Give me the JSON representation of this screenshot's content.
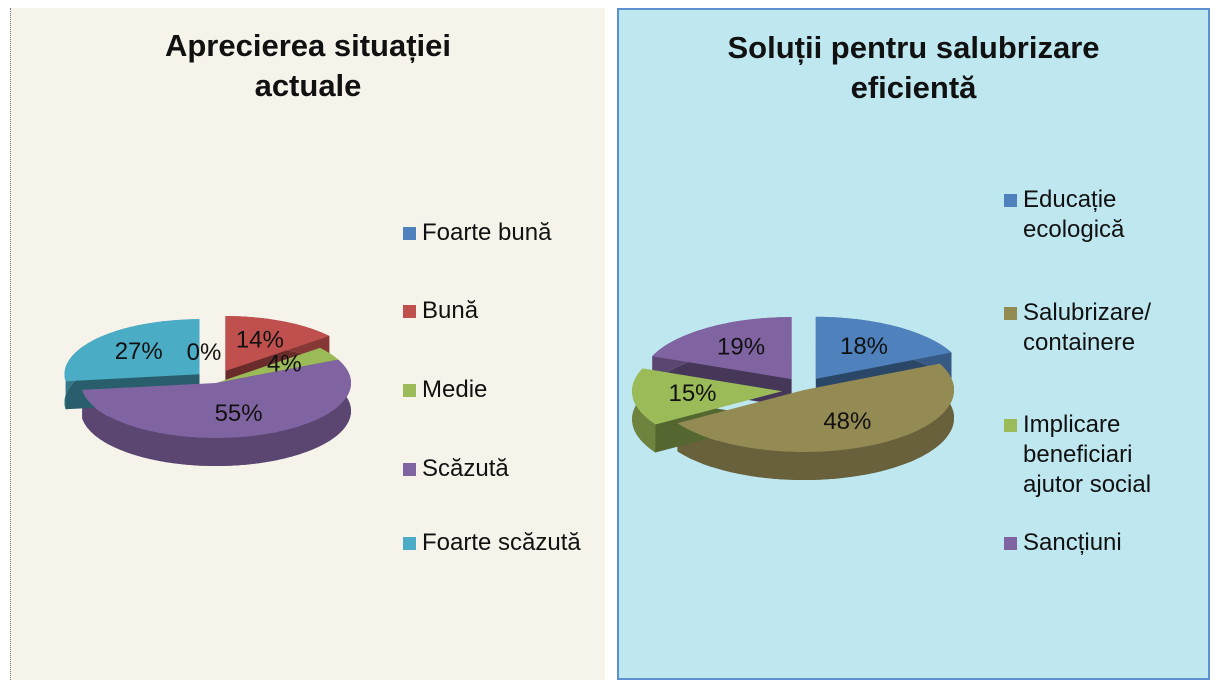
{
  "chart_data": [
    {
      "type": "pie",
      "title": "Aprecierea situației actuale",
      "categories": [
        "Foarte bună",
        "Bună",
        "Medie",
        "Scăzută",
        "Foarte scăzută"
      ],
      "values": [
        0,
        14,
        4,
        55,
        27
      ],
      "value_labels": [
        "0%",
        "14%",
        "4%",
        "55%",
        "27%"
      ],
      "colors": [
        "#4f81bd",
        "#c0504d",
        "#9bbb59",
        "#8064a2",
        "#4bacc6"
      ]
    },
    {
      "type": "pie",
      "title": "Soluții pentru salubrizare eficientă",
      "categories": [
        "Educație ecologică",
        "Salubrizare/ containere",
        " Implicare beneficiari ajutor social",
        "Sancțiuni"
      ],
      "values": [
        18,
        48,
        15,
        19
      ],
      "value_labels": [
        "18%",
        "48%",
        "15%",
        "19%"
      ],
      "colors": [
        "#4f81bd",
        "#948a54",
        "#9bbb59",
        "#8064a2"
      ]
    }
  ]
}
